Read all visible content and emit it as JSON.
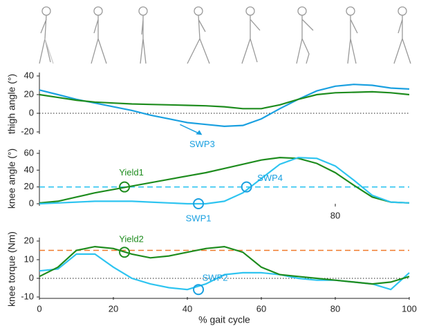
{
  "chart_data": [
    {
      "type": "line",
      "ylabel": "thigh angle (°)",
      "ylim": [
        -20,
        40
      ],
      "yticks": [
        -20,
        0,
        20,
        40
      ],
      "xlim": [
        0,
        100
      ],
      "xticks": [],
      "zero_line": true,
      "x": [
        0,
        5,
        10,
        15,
        20,
        25,
        30,
        35,
        40,
        45,
        50,
        55,
        60,
        65,
        70,
        75,
        80,
        85,
        90,
        95,
        100
      ],
      "series": [
        {
          "color": "#1aa0e0",
          "values": [
            25,
            20,
            15,
            11,
            7,
            3,
            -2,
            -6,
            -10,
            -12,
            -14,
            -13,
            -6,
            5,
            15,
            24,
            29,
            31,
            30,
            27,
            26
          ]
        },
        {
          "color": "#1e8c1e",
          "values": [
            20,
            17,
            14,
            12,
            11,
            10,
            9.5,
            9,
            8.5,
            8,
            7,
            5,
            5,
            9,
            15,
            20,
            22,
            22.5,
            23,
            22,
            20
          ]
        }
      ],
      "annotations": [
        {
          "label": "SWP3",
          "x": 44,
          "y": -21,
          "marker": "arrow",
          "color": "#1aa0e0"
        }
      ]
    },
    {
      "type": "line",
      "ylabel": "knee angle (°)",
      "ylim": [
        0,
        60
      ],
      "yticks": [
        0,
        20,
        40,
        60
      ],
      "xlim": [
        0,
        100
      ],
      "xticks": [
        80
      ],
      "x": [
        0,
        5,
        10,
        15,
        20,
        25,
        30,
        35,
        40,
        45,
        50,
        55,
        60,
        65,
        70,
        75,
        80,
        85,
        90,
        95,
        100
      ],
      "series": [
        {
          "color": "#1e8c1e",
          "values": [
            1,
            3,
            8,
            13,
            17,
            21,
            25,
            29,
            33,
            37,
            42,
            47,
            52,
            55,
            54,
            48,
            37,
            22,
            8,
            2,
            1
          ]
        },
        {
          "color": "#2ec4f0",
          "values": [
            0,
            1,
            2,
            3,
            3,
            3,
            2,
            1,
            0,
            0,
            3,
            13,
            30,
            47,
            55,
            54,
            45,
            28,
            10,
            2,
            1
          ]
        }
      ],
      "ref_line": {
        "value": 20,
        "color": "#2ec4f0"
      },
      "annotations": [
        {
          "label": "Yield1",
          "x": 23,
          "y": 20,
          "marker": "circle",
          "color": "#1e8c1e"
        },
        {
          "label": "SWP1",
          "x": 43,
          "y": 0,
          "marker": "circle",
          "color": "#1aa0e0"
        },
        {
          "label": "SWP4",
          "x": 56,
          "y": 20,
          "marker": "circle",
          "color": "#1aa0e0"
        }
      ]
    },
    {
      "type": "line",
      "ylabel": "knee torque (Nm)",
      "xlabel": "% gait cycle",
      "ylim": [
        -10,
        20
      ],
      "yticks": [
        -10,
        0,
        10,
        20
      ],
      "xlim": [
        0,
        100
      ],
      "xticks": [
        0,
        20,
        40,
        60,
        80,
        100
      ],
      "zero_line": true,
      "x": [
        0,
        5,
        10,
        15,
        20,
        25,
        30,
        35,
        40,
        45,
        50,
        55,
        60,
        65,
        70,
        75,
        80,
        85,
        90,
        95,
        100
      ],
      "series": [
        {
          "color": "#2ec4f0",
          "values": [
            4,
            5,
            13,
            13,
            6,
            0,
            -3,
            -5,
            -6,
            -3,
            2,
            3,
            3,
            2,
            0,
            -1,
            -1,
            -2,
            -3,
            -6,
            3
          ]
        },
        {
          "color": "#1e8c1e",
          "values": [
            1,
            6,
            15,
            17,
            16,
            13,
            11,
            12,
            14,
            16,
            17,
            14,
            6,
            2,
            1,
            0,
            -1,
            -2,
            -3,
            -2,
            1
          ]
        }
      ],
      "ref_line": {
        "value": 15,
        "color": "#f07828"
      },
      "annotations": [
        {
          "label": "Yield2",
          "x": 23,
          "y": 14,
          "marker": "circle",
          "color": "#1e8c1e"
        },
        {
          "label": "SWP2",
          "x": 43,
          "y": -6,
          "marker": "circle",
          "color": "#1aa0e0"
        }
      ]
    }
  ]
}
